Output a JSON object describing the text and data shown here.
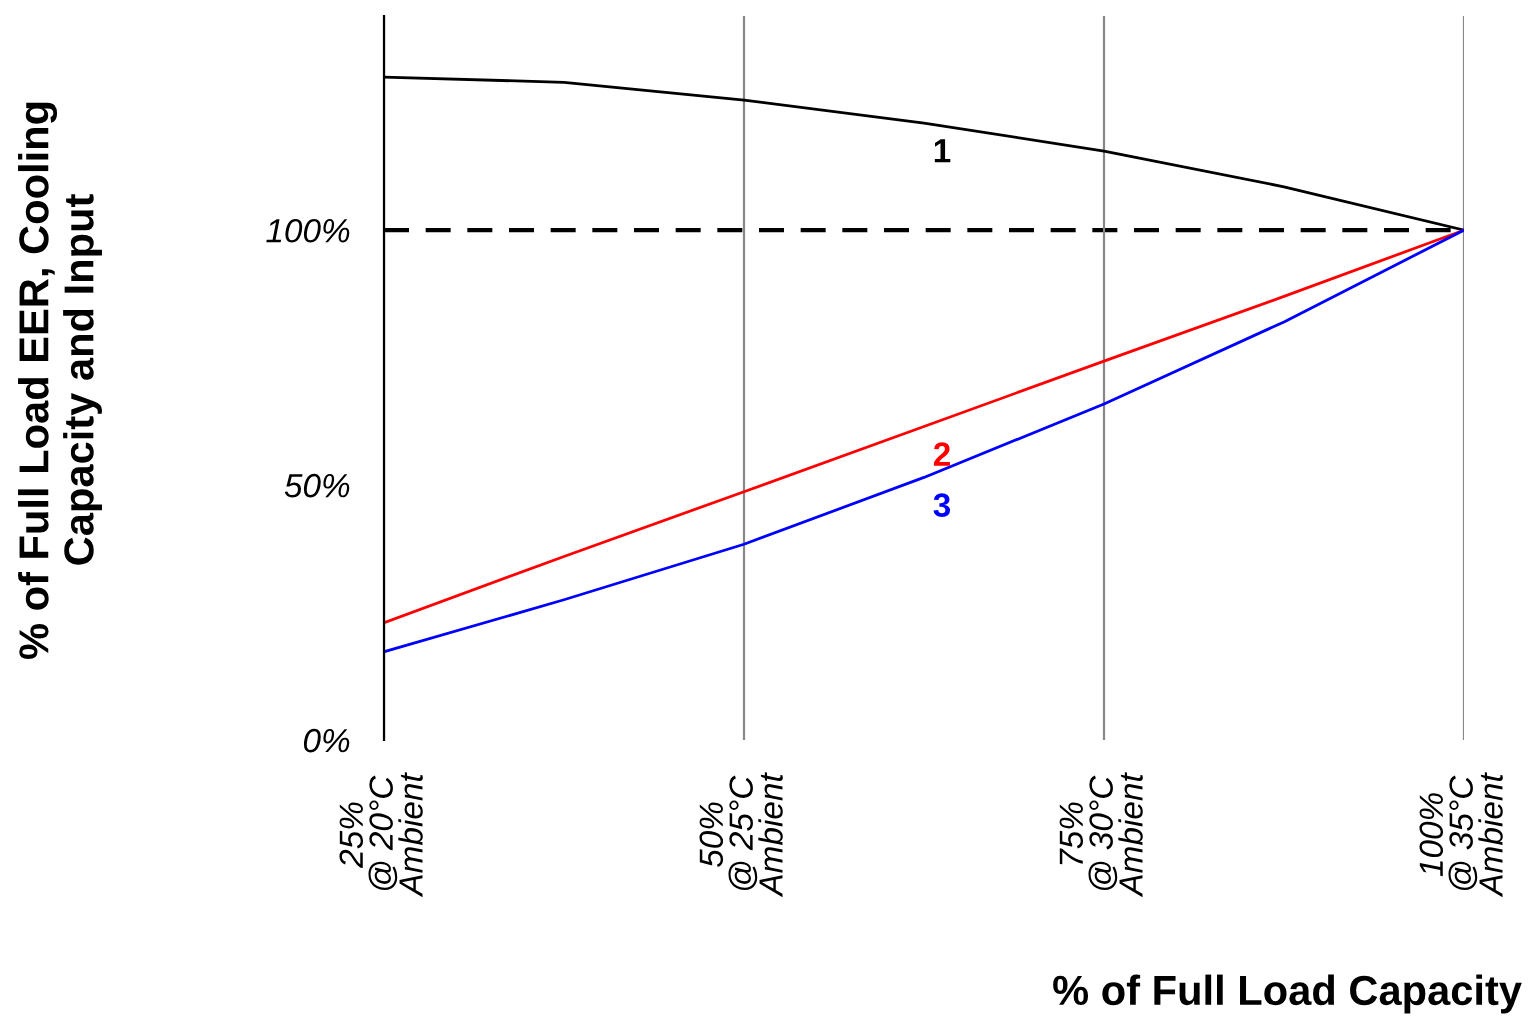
{
  "chart_data": {
    "type": "line",
    "xlabel": "% of Full Load Capacity",
    "ylabel": "% of Full Load EER, Cooling\nCapacity and Input",
    "categories": [
      "25%\n@ 20°C\nAmbient",
      null,
      "50%\n@ 25°C\nAmbient",
      null,
      "75%\n@ 30°C\nAmbient",
      null,
      "100%\n@ 35°C\nAmbient"
    ],
    "series": [
      {
        "name": "1",
        "color": "#000000",
        "values": [
          130,
          129,
          125.5,
          121,
          115.5,
          108.5,
          100
        ]
      },
      {
        "name": "2",
        "color": "#ff0000",
        "values": [
          23,
          36,
          48.7,
          61.5,
          74.3,
          87,
          100
        ]
      },
      {
        "name": "3",
        "color": "#0000ff",
        "values": [
          17.3,
          27.5,
          38.4,
          51.5,
          65.9,
          82,
          100
        ]
      }
    ],
    "ylim": [
      0,
      142
    ],
    "yticks": [
      {
        "value": 0,
        "label": "0%"
      },
      {
        "value": 50,
        "label": "50%"
      },
      {
        "value": 100,
        "label": "100%"
      }
    ],
    "grid": "x",
    "marker": "none",
    "line_style": "solid",
    "ref_lines": [
      {
        "axis": "y",
        "value": 100,
        "color": "#000000",
        "line_style": "dashed"
      }
    ]
  }
}
